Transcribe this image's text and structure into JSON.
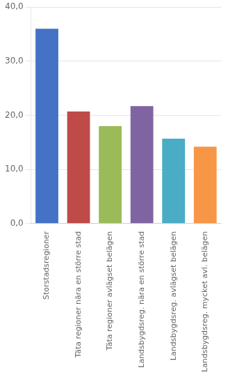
{
  "chart_data": {
    "type": "bar",
    "categories": [
      "Storstadsregioner",
      "Täta regioner nära en större stad",
      "Täta regioner avlägset belägen",
      "Landsbygdsreg. nära en större stad",
      "Landsbygdsreg. avlägset belägen",
      "Landsbygdsreg. mycket avl. belägen"
    ],
    "values": [
      36.0,
      20.7,
      18.0,
      21.7,
      15.7,
      14.2
    ],
    "colors": [
      "#4472C4",
      "#BE4B48",
      "#9BBB59",
      "#8064A2",
      "#4BACC6",
      "#F79646"
    ],
    "ylim": [
      0,
      40
    ],
    "yticks": [
      {
        "value": 0.0,
        "label": "0,0"
      },
      {
        "value": 10.0,
        "label": "10,0"
      },
      {
        "value": 20.0,
        "label": "20,0"
      },
      {
        "value": 30.0,
        "label": "30,0"
      },
      {
        "value": 40.0,
        "label": "40,0"
      }
    ],
    "grid": true
  }
}
